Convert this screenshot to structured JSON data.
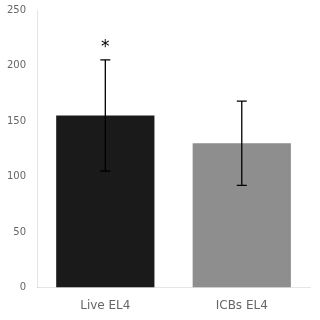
{
  "chart_data": {
    "type": "bar",
    "categories": [
      "Live EL4",
      "ICBs EL4"
    ],
    "values": [
      155,
      130
    ],
    "errors_up": [
      50,
      38
    ],
    "errors_down": [
      50,
      38
    ],
    "colors": [
      "#1a1a1a",
      "#8e8e8e"
    ],
    "ylim": [
      0,
      250
    ],
    "yticks": [
      0,
      50,
      100,
      150,
      200,
      250
    ],
    "annotations": [
      {
        "text": "*",
        "category": "Live EL4"
      }
    ],
    "grid": false
  }
}
